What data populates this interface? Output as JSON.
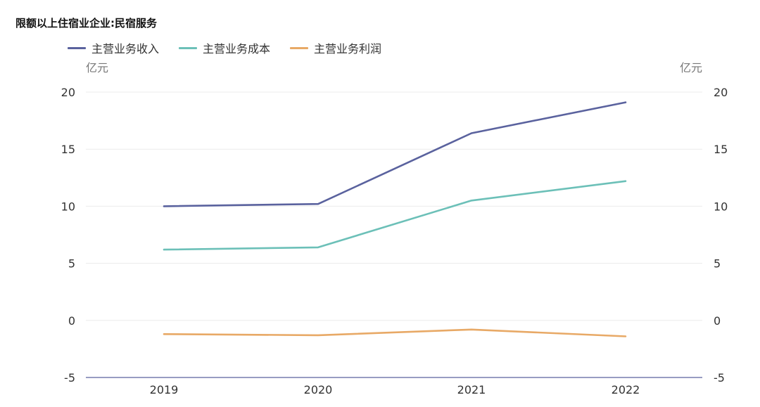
{
  "chart_data": {
    "type": "line",
    "title": "限额以上住宿业企业:民宿服务",
    "y_unit_left": "亿元",
    "y_unit_right": "亿元",
    "categories": [
      "2019",
      "2020",
      "2021",
      "2022"
    ],
    "ylim": [
      -5,
      20
    ],
    "yticks": [
      20,
      15,
      10,
      5,
      0,
      -5
    ],
    "series": [
      {
        "name": "主营业务收入",
        "color": "#5a629e",
        "values": [
          10.0,
          10.2,
          16.4,
          19.1
        ]
      },
      {
        "name": "主营业务成本",
        "color": "#6cc0b8",
        "values": [
          6.2,
          6.4,
          10.5,
          12.2
        ]
      },
      {
        "name": "主营业务利润",
        "color": "#e8a966",
        "values": [
          -1.2,
          -1.3,
          -0.8,
          -1.4
        ]
      }
    ],
    "grid": true,
    "legend": "top-left"
  }
}
